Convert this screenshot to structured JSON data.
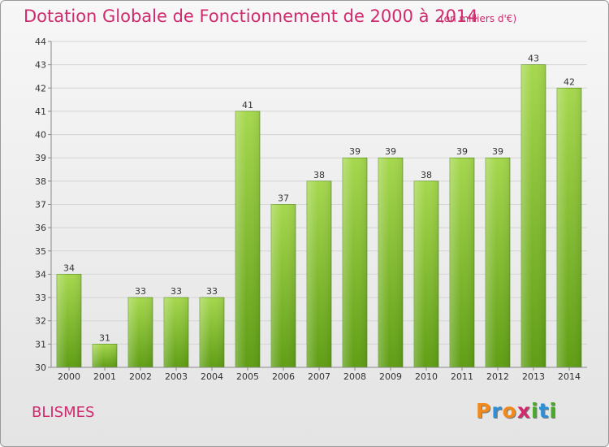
{
  "header": {
    "title": "Dotation Globale de Fonctionnement de 2000 à 2014",
    "unit": "(en milliers d'€)"
  },
  "footer": {
    "commune": "BLISMES",
    "logo_text": "Proxiti"
  },
  "colors": {
    "title": "#d02a6e",
    "bar_light": "#a6d84e",
    "bar_dark": "#5f9e14",
    "logo_letters": [
      "#f08a1c",
      "#2f8fd6",
      "#f08a1c",
      "#d02a6e",
      "#4aa82a",
      "#2f8fd6",
      "#4aa82a"
    ]
  },
  "chart_data": {
    "type": "bar",
    "title": "Dotation Globale de Fonctionnement de 2000 à 2014",
    "subtitle": "(en milliers d'€)",
    "categories": [
      "2000",
      "2001",
      "2002",
      "2003",
      "2004",
      "2005",
      "2006",
      "2007",
      "2008",
      "2009",
      "2010",
      "2011",
      "2012",
      "2013",
      "2014"
    ],
    "values": [
      34,
      31,
      33,
      33,
      33,
      41,
      37,
      38,
      39,
      39,
      38,
      39,
      39,
      43,
      42
    ],
    "ylim": [
      30,
      44
    ],
    "yticks": [
      30,
      31,
      32,
      33,
      34,
      35,
      36,
      37,
      38,
      39,
      40,
      41,
      42,
      43,
      44
    ],
    "grid": true,
    "legend": "none"
  }
}
